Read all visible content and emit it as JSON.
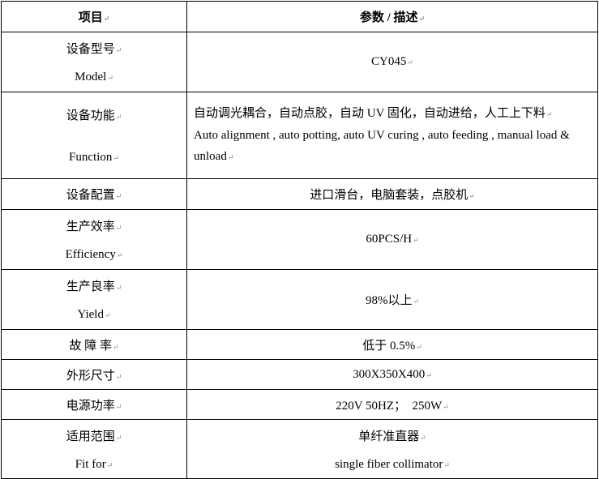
{
  "header": {
    "item": "项目",
    "param": "参数 / 描述"
  },
  "rows": [
    {
      "label_cn": "设备型号",
      "label_en": "Model",
      "value": "CY045"
    },
    {
      "label_cn": "设备功能",
      "label_en": "Function",
      "value_cn": "自动调光耦合，自动点胶，自动 UV 固化，自动进给，人工上下料",
      "value_en": "Auto alignment , auto potting, auto UV curing , auto feeding , manual load & unload"
    },
    {
      "label_cn": "设备配置",
      "value": "进口滑台，电脑套装，点胶机"
    },
    {
      "label_cn": "生产效率",
      "label_en": "Efficiency",
      "value": "60PCS/H"
    },
    {
      "label_cn": "生产良率",
      "label_en": "Yield",
      "value": "98%以上"
    },
    {
      "label_cn": "故 障 率",
      "value": "低于 0.5%"
    },
    {
      "label_cn": "外形尺寸",
      "value": "300X350X400"
    },
    {
      "label_cn": "电源功率",
      "value": "220V 50HZ；  250W"
    },
    {
      "label_cn": "适用范围",
      "label_en": "Fit for",
      "value_cn": "单纤准直器",
      "value_en": "single fiber collimator"
    }
  ]
}
